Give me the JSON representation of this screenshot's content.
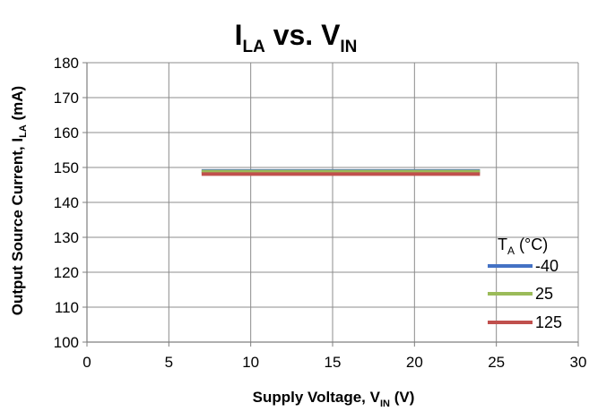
{
  "chart_data": {
    "type": "line",
    "title": {
      "main_a": "I",
      "sub_a": "LA",
      "main_b": " vs. V",
      "sub_b": "IN"
    },
    "xlabel": {
      "text": "Supply Voltage, V",
      "sub": "IN",
      "suffix": " (V)"
    },
    "ylabel": {
      "text": "Output Source Current, I",
      "sub": "LA",
      "suffix": " (mA)"
    },
    "xlim": [
      0,
      30
    ],
    "ylim": [
      100,
      180
    ],
    "xticks": [
      0,
      5,
      10,
      15,
      20,
      25,
      30
    ],
    "yticks": [
      100,
      110,
      120,
      130,
      140,
      150,
      160,
      170,
      180
    ],
    "grid": true,
    "legend": {
      "title": "T",
      "title_sub": "A",
      "title_suffix": " (°C)",
      "placement": "right"
    },
    "series": [
      {
        "name": "-40",
        "color": "#4472C4",
        "x": [
          7,
          24
        ],
        "y": [
          149.0,
          149.0
        ]
      },
      {
        "name": "25",
        "color": "#9BBB59",
        "x": [
          7,
          24
        ],
        "y": [
          148.8,
          148.8
        ]
      },
      {
        "name": "125",
        "color": "#C0504D",
        "x": [
          7,
          24
        ],
        "y": [
          148.1,
          148.1
        ]
      }
    ]
  }
}
